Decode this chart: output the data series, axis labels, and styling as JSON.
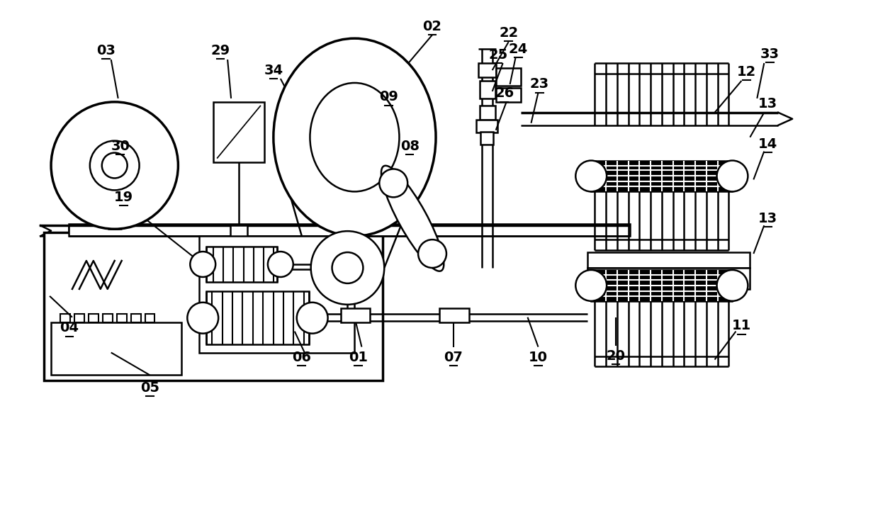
{
  "bg_color": "#ffffff",
  "lc": "#000000",
  "lw": 1.8,
  "tlw": 2.5,
  "fig_width": 12.39,
  "fig_height": 7.48,
  "dpi": 100
}
